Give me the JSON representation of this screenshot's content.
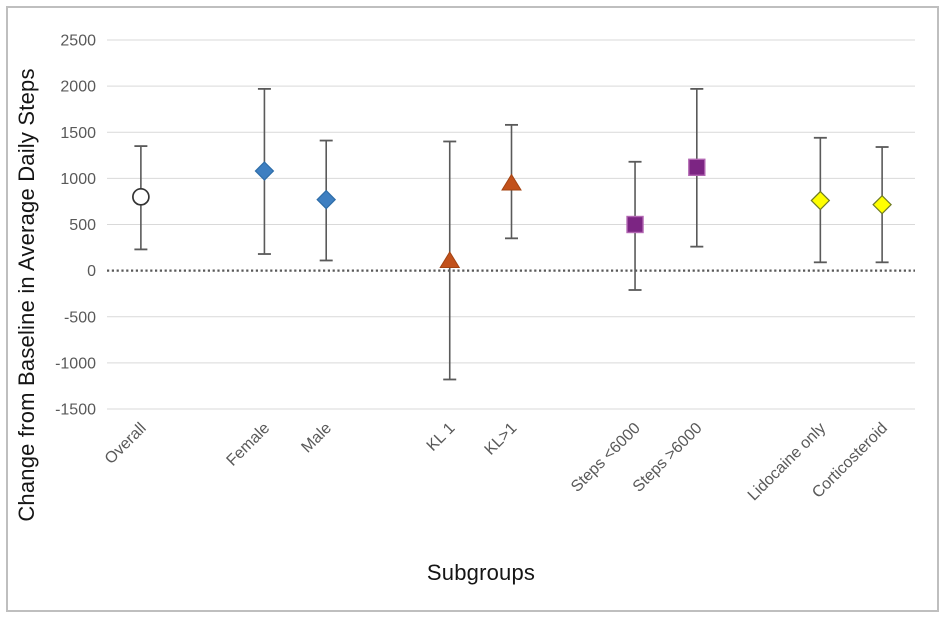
{
  "figure": {
    "background": "#FFFFFF",
    "border_color": "#BFBFBF"
  },
  "chart_data": {
    "type": "scatter",
    "subtype": "forest-plot-with-error-bars",
    "title": "",
    "xlabel": "Subgroups",
    "ylabel": "Change from Baseline in Average Daily Steps",
    "ylim": [
      -1500,
      2500
    ],
    "yticks": [
      2500,
      2000,
      1500,
      1000,
      500,
      0,
      -500,
      -1000,
      -1500
    ],
    "grid": true,
    "zero_line_style": "dotted",
    "legend": "none",
    "points": [
      {
        "label": "Overall",
        "group": 0,
        "marker": "circle",
        "value": 800,
        "ci_low": 230,
        "ci_high": 1350,
        "fill": "#FFFFFF",
        "stroke": "#333333"
      },
      {
        "label": "Female",
        "group": 1,
        "marker": "diamond",
        "value": 1080,
        "ci_low": 180,
        "ci_high": 1970,
        "fill": "#3E7FC1",
        "stroke": "#2E6DA8"
      },
      {
        "label": "Male",
        "group": 1,
        "marker": "diamond",
        "value": 770,
        "ci_low": 110,
        "ci_high": 1410,
        "fill": "#3E7FC1",
        "stroke": "#2E6DA8"
      },
      {
        "label": "KL 1",
        "group": 2,
        "marker": "triangle",
        "value": 110,
        "ci_low": -1180,
        "ci_high": 1400,
        "fill": "#C2511B",
        "stroke": "#A34312"
      },
      {
        "label": "KL>1",
        "group": 2,
        "marker": "triangle",
        "value": 950,
        "ci_low": 350,
        "ci_high": 1580,
        "fill": "#C2511B",
        "stroke": "#A34312"
      },
      {
        "label": "Steps <6000",
        "group": 3,
        "marker": "square",
        "value": 500,
        "ci_low": -210,
        "ci_high": 1180,
        "fill": "#7C2583",
        "stroke": "#B267B2"
      },
      {
        "label": "Steps >6000",
        "group": 3,
        "marker": "square",
        "value": 1120,
        "ci_low": 260,
        "ci_high": 1970,
        "fill": "#7C2583",
        "stroke": "#B267B2"
      },
      {
        "label": "Lidocaine only",
        "group": 4,
        "marker": "diamond",
        "value": 760,
        "ci_low": 90,
        "ci_high": 1440,
        "fill": "#FFFF00",
        "stroke": "#6E7B23"
      },
      {
        "label": "Corticosteroid",
        "group": 4,
        "marker": "diamond",
        "value": 715,
        "ci_low": 90,
        "ci_high": 1340,
        "fill": "#FFFF00",
        "stroke": "#6E7B23"
      }
    ],
    "colors": {
      "gridline": "#D9D9D9",
      "zero_line": "#595959",
      "error_bar": "#5A5A5A",
      "tick_label": "#595959",
      "category_label": "#595959",
      "axis_title": "#151515"
    }
  }
}
